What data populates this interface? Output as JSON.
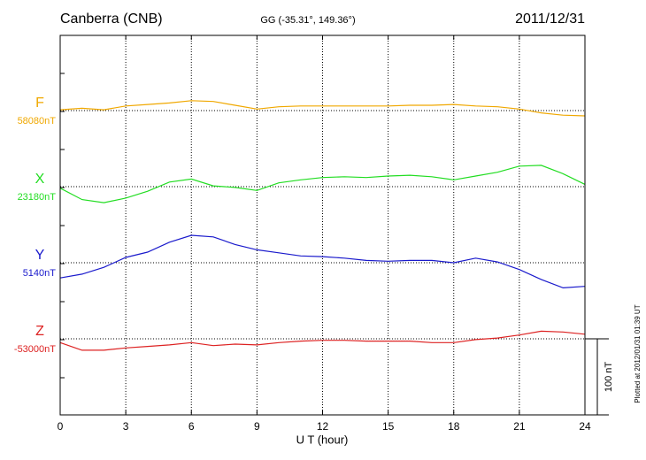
{
  "chart_data": {
    "type": "line",
    "title": "Canberra (CNB)",
    "subtitle": "GG (-35.31°, 149.36°)",
    "date": "2011/12/31",
    "footnote": "Plotted at 2012/01/31 01:39 UT",
    "xlabel": "U T (hour)",
    "xlim": [
      0,
      24
    ],
    "xticks": [
      0,
      3,
      6,
      9,
      12,
      15,
      18,
      21,
      24
    ],
    "grid": true,
    "scale_bar": {
      "value": 100,
      "label": "100 nT"
    },
    "x": [
      0,
      1,
      2,
      3,
      4,
      5,
      6,
      7,
      8,
      9,
      10,
      11,
      12,
      13,
      14,
      15,
      16,
      17,
      18,
      19,
      20,
      21,
      22,
      23,
      24
    ],
    "series": [
      {
        "name": "F",
        "color": "#f0a800",
        "baseline": {
          "value": 58080,
          "label": "58080nT"
        },
        "values": [
          58081,
          58083,
          58081,
          58086,
          58088,
          58090,
          58093,
          58092,
          58087,
          58082,
          58085,
          58086,
          58086,
          58086,
          58086,
          58086,
          58087,
          58087,
          58088,
          58086,
          58085,
          58082,
          58077,
          58074,
          58073
        ]
      },
      {
        "name": "X",
        "color": "#22dd22",
        "baseline": {
          "value": 23180,
          "label": "23180nT"
        },
        "values": [
          23178,
          23163,
          23159,
          23165,
          23174,
          23186,
          23190,
          23181,
          23179,
          23175,
          23185,
          23189,
          23192,
          23193,
          23192,
          23194,
          23195,
          23193,
          23189,
          23194,
          23199,
          23207,
          23208,
          23197,
          23183
        ]
      },
      {
        "name": "Y",
        "color": "#1a1acc",
        "baseline": {
          "value": 5140,
          "label": "5140nT"
        },
        "values": [
          5120,
          5125,
          5134,
          5147,
          5154,
          5167,
          5176,
          5174,
          5164,
          5157,
          5153,
          5149,
          5148,
          5146,
          5143,
          5142,
          5143,
          5143,
          5140,
          5146,
          5141,
          5131,
          5118,
          5107,
          5109
        ]
      },
      {
        "name": "Z",
        "color": "#dd2222",
        "baseline": {
          "value": -53000,
          "label": "-53000nT"
        },
        "values": [
          -53005,
          -53015,
          -53015,
          -53012,
          -53010,
          -53008,
          -53005,
          -53009,
          -53007,
          -53008,
          -53005,
          -53003,
          -53002,
          -53002,
          -53003,
          -53003,
          -53003,
          -53005,
          -53005,
          -53001,
          -52999,
          -52995,
          -52990,
          -52991,
          -52994
        ]
      }
    ]
  }
}
